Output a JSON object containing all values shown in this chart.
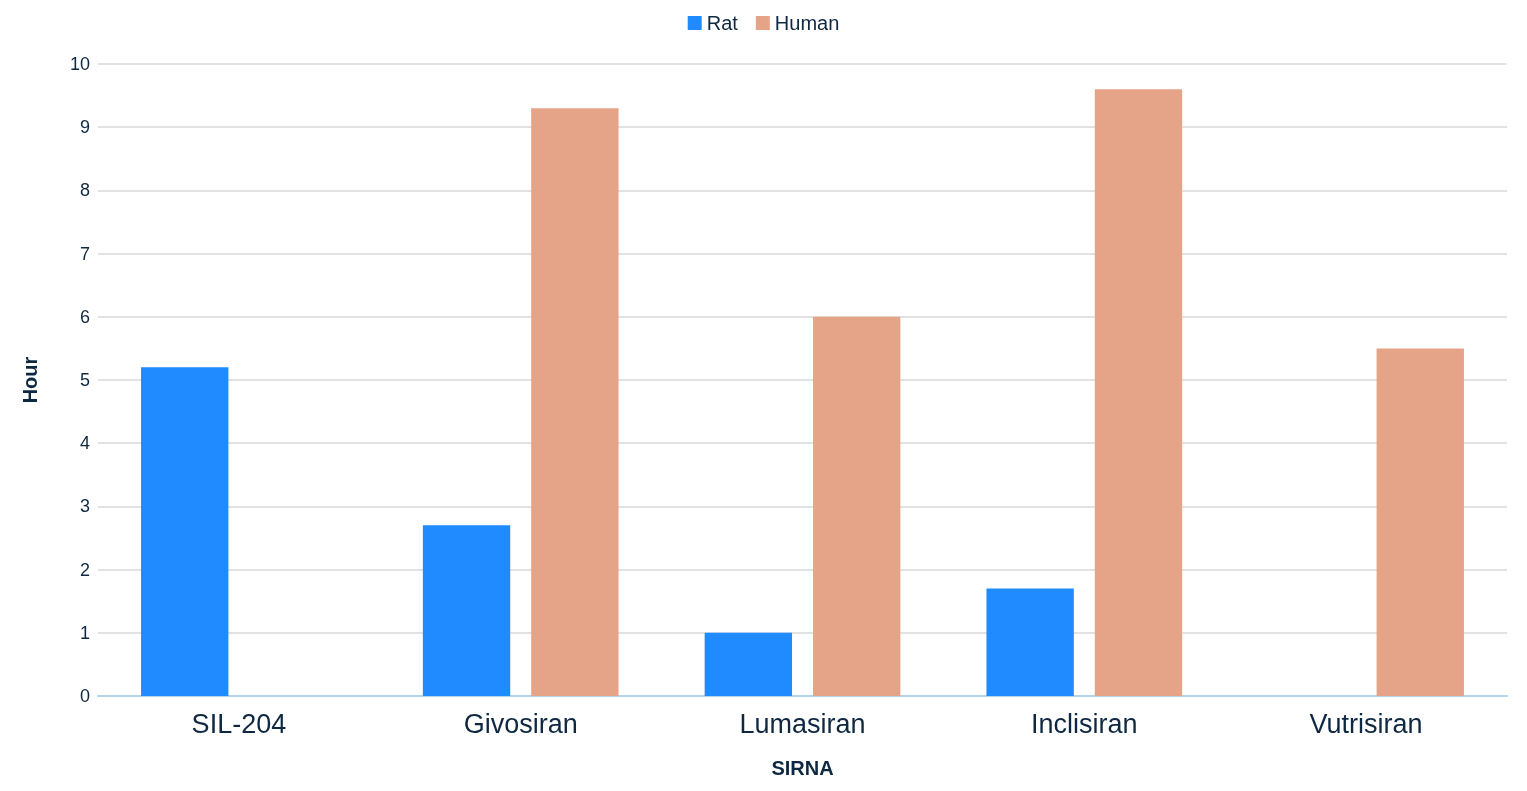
{
  "chart_data": {
    "type": "bar",
    "xlabel": "SIRNA",
    "ylabel": "Hour",
    "categories": [
      "SIL-204",
      "Givosiran",
      "Lumasiran",
      "Inclisiran",
      "Vutrisiran"
    ],
    "series": [
      {
        "name": "Rat",
        "color": "#1f8bff",
        "values": [
          5.2,
          2.7,
          1.0,
          1.7,
          null
        ]
      },
      {
        "name": "Human",
        "color": "#e5a387",
        "values": [
          null,
          9.3,
          6.0,
          9.6,
          5.5
        ]
      }
    ],
    "ylim": [
      0,
      10
    ],
    "yticks": [
      0,
      1,
      2,
      3,
      4,
      5,
      6,
      7,
      8,
      9,
      10
    ],
    "grid": "y",
    "legend": "top"
  }
}
